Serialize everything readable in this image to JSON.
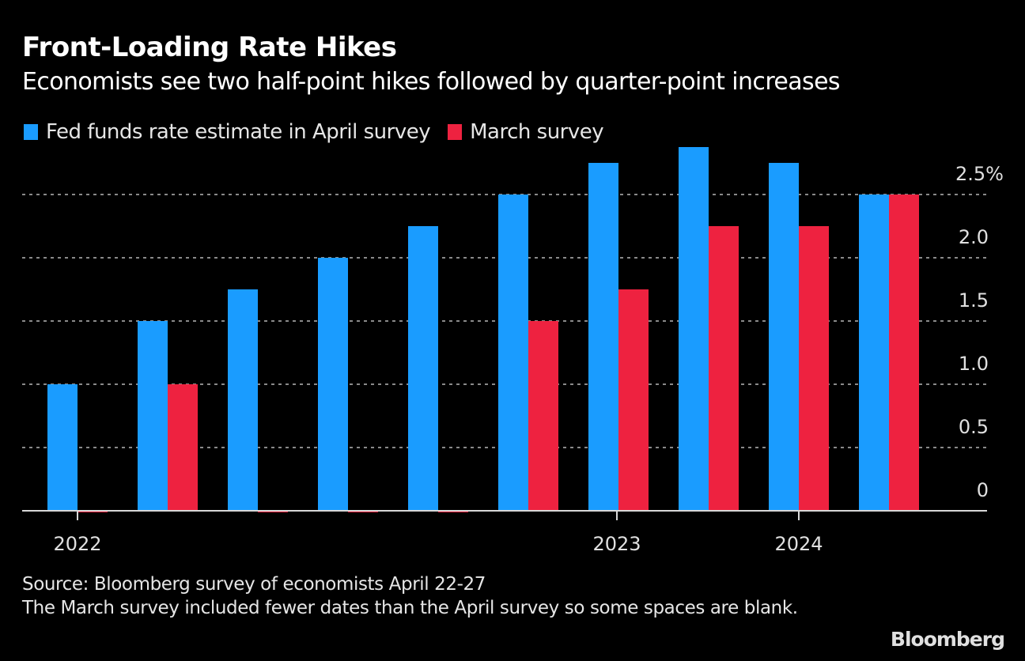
{
  "chart_data": {
    "type": "bar",
    "title": "Front-Loading Rate Hikes",
    "subtitle": "Economists see two half-point hikes followed by quarter-point increases",
    "xlabel": "",
    "ylabel": "",
    "ylim": [
      0,
      2.5
    ],
    "yticks": [
      {
        "value": 0,
        "label": "0"
      },
      {
        "value": 0.5,
        "label": "0.5"
      },
      {
        "value": 1.0,
        "label": "1.0"
      },
      {
        "value": 1.5,
        "label": "1.5"
      },
      {
        "value": 2.0,
        "label": "2.0"
      },
      {
        "value": 2.5,
        "label": "2.5%"
      }
    ],
    "grid": true,
    "y_axis_position": "right",
    "legend_position": "top-left",
    "categories": [
      "2022 P1",
      "2022 P2",
      "2022 P3",
      "2022 P4",
      "2022 P5",
      "2022 P6",
      "2023 P1",
      "2023 P2",
      "2024 P1",
      "2024 P2"
    ],
    "xticks": [
      {
        "label": "2022",
        "category_index": 0
      },
      {
        "label": "2023",
        "category_index": 6
      },
      {
        "label": "2024",
        "category_index": 8
      }
    ],
    "series": [
      {
        "name": "Fed funds rate estimate in April survey",
        "color": "#1a9cff",
        "values": [
          1.0,
          1.5,
          1.75,
          2.0,
          2.25,
          2.5,
          2.75,
          2.875,
          2.75,
          2.5
        ]
      },
      {
        "name": "March survey",
        "color": "#ee2240",
        "values": [
          null,
          1.0,
          null,
          null,
          null,
          1.5,
          1.75,
          2.25,
          2.25,
          2.5
        ]
      }
    ]
  },
  "footer": {
    "source": "Source: Bloomberg survey of economists April 22-27",
    "note": "The March survey included fewer dates than the April survey so some spaces are blank."
  },
  "branding": {
    "logo": "Bloomberg"
  },
  "colors": {
    "background": "#000000",
    "grid": "#8a8a8a",
    "axis": "#d9d9d9",
    "text": "#e0e0e0"
  }
}
